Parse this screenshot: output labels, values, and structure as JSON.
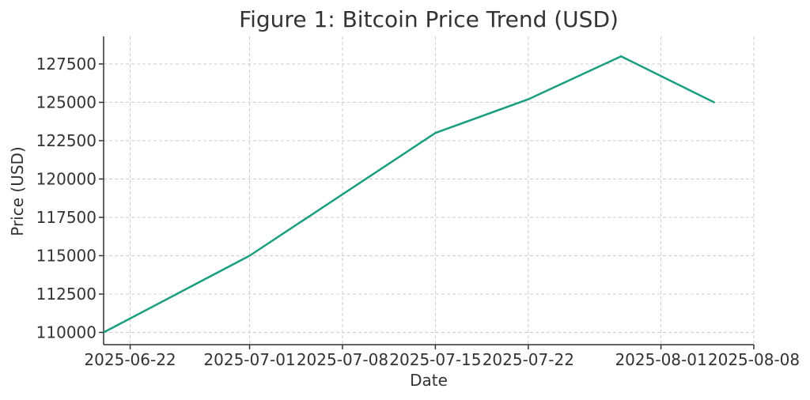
{
  "chart_data": {
    "type": "line",
    "title": "Figure 1: Bitcoin Price Trend (USD)",
    "xlabel": "Date",
    "ylabel": "Price (USD)",
    "x_ticks": [
      "2025-06-22",
      "2025-07-01",
      "2025-07-08",
      "2025-07-15",
      "2025-07-22",
      "2025-08-01",
      "2025-08-08"
    ],
    "y_ticks": [
      110000,
      112500,
      115000,
      117500,
      120000,
      122500,
      125000,
      127500
    ],
    "xlim": [
      "2025-06-20",
      "2025-08-08"
    ],
    "ylim": [
      109200,
      129300
    ],
    "grid": true,
    "color": "#1a9e7f",
    "series": [
      {
        "x": [
          "2025-06-20",
          "2025-07-01",
          "2025-07-15",
          "2025-07-22",
          "2025-07-29",
          "2025-08-05"
        ],
        "values": [
          110000,
          115000,
          123000,
          125200,
          128000,
          125000
        ]
      }
    ]
  }
}
